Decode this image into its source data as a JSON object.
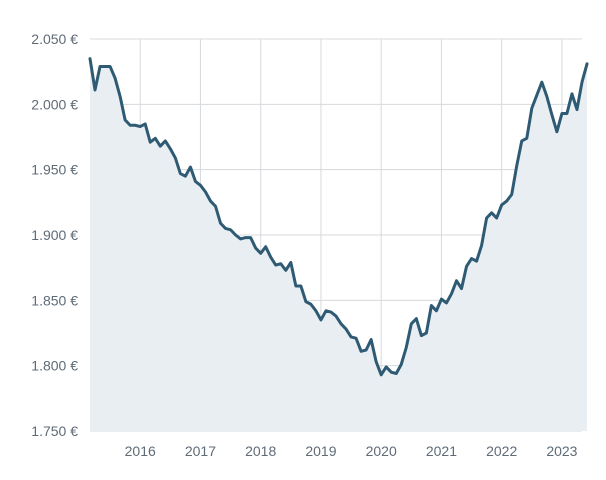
{
  "chart_data": {
    "type": "area",
    "title": "",
    "xlabel": "",
    "ylabel": "",
    "x_ticks": [
      "2016",
      "2017",
      "2018",
      "2019",
      "2020",
      "2021",
      "2022",
      "2023"
    ],
    "y_ticks": [
      {
        "value": 1750,
        "label": "1.750 €"
      },
      {
        "value": 1800,
        "label": "1.800 €"
      },
      {
        "value": 1850,
        "label": "1.850 €"
      },
      {
        "value": 1900,
        "label": "1.900 €"
      },
      {
        "value": 1950,
        "label": "1.950 €"
      },
      {
        "value": 2000,
        "label": "2.000 €"
      },
      {
        "value": 2050,
        "label": "2.050 €"
      }
    ],
    "ylim": [
      1750,
      2050
    ],
    "xlim": [
      "2015-03",
      "2023-05"
    ],
    "grid": true,
    "colors": {
      "line": "#2e5b73",
      "area": "#e9eef3",
      "grid": "#d6d9dd",
      "text": "#5f6b76"
    },
    "series": [
      {
        "points": [
          [
            "2015-03",
            2035
          ],
          [
            "2015-04",
            2011
          ],
          [
            "2015-05",
            2029
          ],
          [
            "2015-06",
            2029
          ],
          [
            "2015-07",
            2029
          ],
          [
            "2015-08",
            2020
          ],
          [
            "2015-09",
            2006
          ],
          [
            "2015-10",
            1988
          ],
          [
            "2015-11",
            1984
          ],
          [
            "2015-12",
            1984
          ],
          [
            "2016-01",
            1983
          ],
          [
            "2016-02",
            1985
          ],
          [
            "2016-03",
            1971
          ],
          [
            "2016-04",
            1974
          ],
          [
            "2016-05",
            1968
          ],
          [
            "2016-06",
            1972
          ],
          [
            "2016-07",
            1966
          ],
          [
            "2016-08",
            1959
          ],
          [
            "2016-09",
            1947
          ],
          [
            "2016-10",
            1945
          ],
          [
            "2016-11",
            1952
          ],
          [
            "2016-12",
            1941
          ],
          [
            "2017-01",
            1938
          ],
          [
            "2017-02",
            1933
          ],
          [
            "2017-03",
            1926
          ],
          [
            "2017-04",
            1922
          ],
          [
            "2017-05",
            1909
          ],
          [
            "2017-06",
            1905
          ],
          [
            "2017-07",
            1904
          ],
          [
            "2017-08",
            1900
          ],
          [
            "2017-09",
            1897
          ],
          [
            "2017-10",
            1898
          ],
          [
            "2017-11",
            1898
          ],
          [
            "2017-12",
            1890
          ],
          [
            "2018-01",
            1886
          ],
          [
            "2018-02",
            1891
          ],
          [
            "2018-03",
            1883
          ],
          [
            "2018-04",
            1877
          ],
          [
            "2018-05",
            1878
          ],
          [
            "2018-06",
            1873
          ],
          [
            "2018-07",
            1879
          ],
          [
            "2018-08",
            1861
          ],
          [
            "2018-09",
            1861
          ],
          [
            "2018-10",
            1849
          ],
          [
            "2018-11",
            1847
          ],
          [
            "2018-12",
            1842
          ],
          [
            "2019-01",
            1835
          ],
          [
            "2019-02",
            1842
          ],
          [
            "2019-03",
            1841
          ],
          [
            "2019-04",
            1838
          ],
          [
            "2019-05",
            1832
          ],
          [
            "2019-06",
            1828
          ],
          [
            "2019-07",
            1822
          ],
          [
            "2019-08",
            1821
          ],
          [
            "2019-09",
            1811
          ],
          [
            "2019-10",
            1812
          ],
          [
            "2019-11",
            1820
          ],
          [
            "2019-12",
            1803
          ],
          [
            "2020-01",
            1793
          ],
          [
            "2020-02",
            1799
          ],
          [
            "2020-03",
            1795
          ],
          [
            "2020-04",
            1794
          ],
          [
            "2020-05",
            1801
          ],
          [
            "2020-06",
            1814
          ],
          [
            "2020-07",
            1832
          ],
          [
            "2020-08",
            1836
          ],
          [
            "2020-09",
            1823
          ],
          [
            "2020-10",
            1825
          ],
          [
            "2020-11",
            1846
          ],
          [
            "2020-12",
            1842
          ],
          [
            "2021-01",
            1851
          ],
          [
            "2021-02",
            1848
          ],
          [
            "2021-03",
            1855
          ],
          [
            "2021-04",
            1865
          ],
          [
            "2021-05",
            1859
          ],
          [
            "2021-06",
            1876
          ],
          [
            "2021-07",
            1882
          ],
          [
            "2021-08",
            1880
          ],
          [
            "2021-09",
            1892
          ],
          [
            "2021-10",
            1913
          ],
          [
            "2021-11",
            1917
          ],
          [
            "2021-12",
            1913
          ],
          [
            "2022-01",
            1923
          ],
          [
            "2022-02",
            1926
          ],
          [
            "2022-03",
            1931
          ],
          [
            "2022-04",
            1953
          ],
          [
            "2022-05",
            1972
          ],
          [
            "2022-06",
            1974
          ],
          [
            "2022-07",
            1997
          ],
          [
            "2022-08",
            2007
          ],
          [
            "2022-09",
            2017
          ],
          [
            "2022-10",
            2006
          ],
          [
            "2022-11",
            1992
          ],
          [
            "2022-12",
            1979
          ],
          [
            "2023-01",
            1993
          ],
          [
            "2023-02",
            1993
          ],
          [
            "2023-03",
            2008
          ],
          [
            "2023-04",
            1996
          ],
          [
            "2023-05",
            2017
          ],
          [
            "2023-06",
            2031
          ]
        ]
      }
    ]
  }
}
